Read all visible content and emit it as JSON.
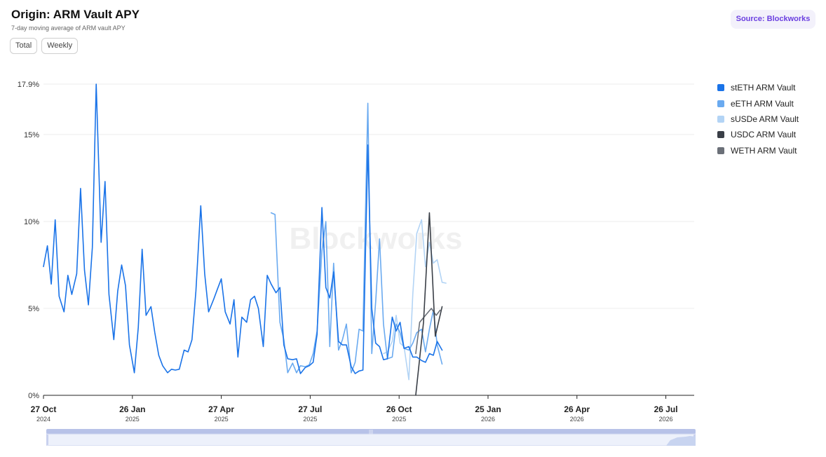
{
  "header": {
    "title": "Origin: ARM Vault APY",
    "subtitle": "7-day moving average of ARM vault APY",
    "source_label": "Source: Blockworks"
  },
  "toggles": [
    {
      "label": "Total"
    },
    {
      "label": "Weekly"
    }
  ],
  "watermark": "Blockworks",
  "colors": {
    "stETH": "#1a73e8",
    "eETH": "#6aaaf0",
    "sUSDe": "#b3d4f5",
    "USDC": "#3a3f47",
    "WETH": "#6b7078"
  },
  "chart_data": {
    "type": "line",
    "x_axis": {
      "type": "date",
      "start": "2024-10-27",
      "end": "2026-08-24",
      "ticks": [
        {
          "date": "2024-10-27",
          "label": "27 Oct",
          "year": "2024"
        },
        {
          "date": "2025-01-26",
          "label": "26 Jan",
          "year": "2025"
        },
        {
          "date": "2025-04-27",
          "label": "27 Apr",
          "year": "2025"
        },
        {
          "date": "2025-07-27",
          "label": "27 Jul",
          "year": "2025"
        },
        {
          "date": "2025-10-26",
          "label": "26 Oct",
          "year": "2025"
        },
        {
          "date": "2026-01-25",
          "label": "25 Jan",
          "year": "2026"
        },
        {
          "date": "2026-04-26",
          "label": "26 Apr",
          "year": "2026"
        },
        {
          "date": "2026-07-26",
          "label": "26 Jul",
          "year": "2026"
        }
      ]
    },
    "y_axis": {
      "min": 0,
      "max": 17.9,
      "unit": "%",
      "ticks": [
        {
          "value": 0,
          "label": "0%"
        },
        {
          "value": 5,
          "label": "5%"
        },
        {
          "value": 10,
          "label": "10%"
        },
        {
          "value": 15,
          "label": "15%"
        },
        {
          "value": 17.9,
          "label": "17.9%"
        }
      ]
    },
    "legend_position": "right",
    "grid": "horizontal",
    "series": [
      {
        "name": "stETH ARM Vault",
        "color_key": "stETH",
        "points": [
          [
            "2024-10-27",
            7.4
          ],
          [
            "2024-10-31",
            8.6
          ],
          [
            "2024-11-04",
            6.4
          ],
          [
            "2024-11-08",
            10.1
          ],
          [
            "2024-11-12",
            5.7
          ],
          [
            "2024-11-17",
            4.8
          ],
          [
            "2024-11-21",
            6.9
          ],
          [
            "2024-11-25",
            5.8
          ],
          [
            "2024-11-30",
            7.0
          ],
          [
            "2024-12-04",
            11.9
          ],
          [
            "2024-12-08",
            7.2
          ],
          [
            "2024-12-12",
            5.2
          ],
          [
            "2024-12-16",
            8.5
          ],
          [
            "2024-12-20",
            17.9
          ],
          [
            "2024-12-25",
            8.8
          ],
          [
            "2024-12-29",
            12.3
          ],
          [
            "2025-01-02",
            5.8
          ],
          [
            "2025-01-07",
            3.2
          ],
          [
            "2025-01-11",
            6.0
          ],
          [
            "2025-01-15",
            7.5
          ],
          [
            "2025-01-19",
            6.3
          ],
          [
            "2025-01-23",
            2.9
          ],
          [
            "2025-01-28",
            1.3
          ],
          [
            "2025-02-01",
            3.9
          ],
          [
            "2025-02-05",
            8.4
          ],
          [
            "2025-02-09",
            4.6
          ],
          [
            "2025-02-14",
            5.1
          ],
          [
            "2025-02-18",
            3.6
          ],
          [
            "2025-02-22",
            2.3
          ],
          [
            "2025-02-26",
            1.7
          ],
          [
            "2025-03-03",
            1.3
          ],
          [
            "2025-03-07",
            1.5
          ],
          [
            "2025-03-11",
            1.45
          ],
          [
            "2025-03-15",
            1.5
          ],
          [
            "2025-03-20",
            2.6
          ],
          [
            "2025-03-24",
            2.5
          ],
          [
            "2025-03-28",
            3.2
          ],
          [
            "2025-04-01",
            6.0
          ],
          [
            "2025-04-06",
            10.9
          ],
          [
            "2025-04-10",
            7.0
          ],
          [
            "2025-04-14",
            4.8
          ],
          [
            "2025-04-19",
            5.5
          ],
          [
            "2025-04-23",
            6.1
          ],
          [
            "2025-04-27",
            6.7
          ],
          [
            "2025-05-01",
            4.8
          ],
          [
            "2025-05-06",
            4.1
          ],
          [
            "2025-05-10",
            5.5
          ],
          [
            "2025-05-14",
            2.2
          ],
          [
            "2025-05-18",
            4.5
          ],
          [
            "2025-05-23",
            4.2
          ],
          [
            "2025-05-27",
            5.5
          ],
          [
            "2025-05-31",
            5.7
          ],
          [
            "2025-06-04",
            5.0
          ],
          [
            "2025-06-09",
            2.8
          ],
          [
            "2025-06-13",
            6.9
          ],
          [
            "2025-06-17",
            6.4
          ],
          [
            "2025-06-22",
            5.9
          ],
          [
            "2025-06-26",
            6.2
          ],
          [
            "2025-06-30",
            2.9
          ],
          [
            "2025-07-04",
            2.1
          ],
          [
            "2025-07-09",
            2.05
          ],
          [
            "2025-07-13",
            2.1
          ],
          [
            "2025-07-17",
            1.25
          ],
          [
            "2025-07-22",
            1.6
          ],
          [
            "2025-07-26",
            1.7
          ],
          [
            "2025-07-30",
            1.9
          ],
          [
            "2025-08-03",
            3.5
          ],
          [
            "2025-08-08",
            10.8
          ],
          [
            "2025-08-12",
            6.2
          ],
          [
            "2025-08-16",
            5.6
          ],
          [
            "2025-08-20",
            7.1
          ],
          [
            "2025-08-25",
            3.1
          ],
          [
            "2025-08-29",
            2.9
          ],
          [
            "2025-09-02",
            2.9
          ],
          [
            "2025-09-07",
            1.65
          ],
          [
            "2025-09-11",
            1.25
          ],
          [
            "2025-09-15",
            1.4
          ],
          [
            "2025-09-19",
            1.45
          ],
          [
            "2025-09-24",
            14.4
          ],
          [
            "2025-09-28",
            5.0
          ],
          [
            "2025-10-02",
            3.0
          ],
          [
            "2025-10-06",
            2.8
          ],
          [
            "2025-10-10",
            2.05
          ],
          [
            "2025-10-14",
            2.1
          ],
          [
            "2025-10-19",
            4.5
          ],
          [
            "2025-10-23",
            3.7
          ],
          [
            "2025-10-27",
            4.2
          ],
          [
            "2025-10-31",
            2.7
          ],
          [
            "2025-11-05",
            2.8
          ],
          [
            "2025-11-09",
            2.2
          ],
          [
            "2025-11-13",
            2.2
          ],
          [
            "2025-11-18",
            2.0
          ],
          [
            "2025-11-22",
            1.9
          ],
          [
            "2025-11-26",
            2.4
          ],
          [
            "2025-11-30",
            2.3
          ],
          [
            "2025-12-04",
            3.1
          ],
          [
            "2025-12-09",
            2.6
          ]
        ]
      },
      {
        "name": "eETH ARM Vault",
        "color_key": "eETH",
        "points": [
          [
            "2025-06-17",
            10.5
          ],
          [
            "2025-06-21",
            10.4
          ],
          [
            "2025-06-26",
            4.2
          ],
          [
            "2025-06-30",
            3.2
          ],
          [
            "2025-07-04",
            1.3
          ],
          [
            "2025-07-09",
            1.85
          ],
          [
            "2025-07-13",
            1.3
          ],
          [
            "2025-07-17",
            1.7
          ],
          [
            "2025-07-22",
            1.65
          ],
          [
            "2025-07-26",
            1.75
          ],
          [
            "2025-07-30",
            2.4
          ],
          [
            "2025-08-03",
            3.7
          ],
          [
            "2025-08-08",
            8.3
          ],
          [
            "2025-08-12",
            10.0
          ],
          [
            "2025-08-16",
            2.8
          ],
          [
            "2025-08-20",
            7.6
          ],
          [
            "2025-08-25",
            2.6
          ],
          [
            "2025-08-29",
            3.2
          ],
          [
            "2025-09-02",
            4.1
          ],
          [
            "2025-09-07",
            1.3
          ],
          [
            "2025-09-11",
            1.9
          ],
          [
            "2025-09-15",
            3.8
          ],
          [
            "2025-09-19",
            3.7
          ],
          [
            "2025-09-24",
            16.8
          ],
          [
            "2025-09-28",
            2.4
          ],
          [
            "2025-10-02",
            5.4
          ],
          [
            "2025-10-06",
            9.0
          ],
          [
            "2025-10-10",
            4.1
          ],
          [
            "2025-10-14",
            2.1
          ],
          [
            "2025-10-19",
            2.2
          ],
          [
            "2025-10-23",
            4.1
          ],
          [
            "2025-10-27",
            3.6
          ],
          [
            "2025-10-31",
            2.7
          ],
          [
            "2025-11-05",
            2.6
          ],
          [
            "2025-11-09",
            3.0
          ],
          [
            "2025-11-13",
            3.6
          ],
          [
            "2025-11-18",
            3.8
          ],
          [
            "2025-11-22",
            2.5
          ],
          [
            "2025-11-26",
            3.8
          ],
          [
            "2025-11-30",
            4.9
          ],
          [
            "2025-12-04",
            2.9
          ],
          [
            "2025-12-09",
            1.8
          ]
        ]
      },
      {
        "name": "sUSDe ARM Vault",
        "color_key": "sUSDe",
        "points": [
          [
            "2025-10-10",
            2.4
          ],
          [
            "2025-10-14",
            2.5
          ],
          [
            "2025-10-19",
            3.1
          ],
          [
            "2025-10-23",
            4.6
          ],
          [
            "2025-10-27",
            3.0
          ],
          [
            "2025-10-31",
            2.8
          ],
          [
            "2025-11-05",
            0.9
          ],
          [
            "2025-11-09",
            5.8
          ],
          [
            "2025-11-13",
            9.3
          ],
          [
            "2025-11-18",
            10.1
          ],
          [
            "2025-11-22",
            7.4
          ],
          [
            "2025-11-26",
            8.8
          ],
          [
            "2025-11-30",
            7.6
          ],
          [
            "2025-12-04",
            7.8
          ],
          [
            "2025-12-09",
            6.5
          ],
          [
            "2025-12-13",
            6.45
          ]
        ]
      },
      {
        "name": "USDC ARM Vault",
        "color_key": "USDC",
        "points": [
          [
            "2025-11-12",
            0
          ],
          [
            "2025-11-20",
            4.2
          ],
          [
            "2025-11-26",
            10.5
          ],
          [
            "2025-12-02",
            3.4
          ],
          [
            "2025-12-09",
            5.1
          ]
        ]
      },
      {
        "name": "WETH ARM Vault",
        "color_key": "WETH",
        "points": [
          [
            "2025-11-12",
            2.4
          ],
          [
            "2025-11-16",
            4.2
          ],
          [
            "2025-11-22",
            4.6
          ],
          [
            "2025-11-28",
            5.0
          ],
          [
            "2025-12-03",
            4.6
          ],
          [
            "2025-12-07",
            4.9
          ]
        ]
      }
    ]
  }
}
